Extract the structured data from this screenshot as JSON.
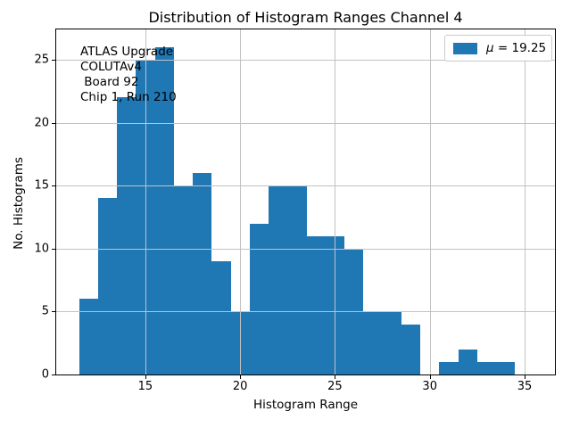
{
  "chart_data": {
    "type": "bar",
    "subtype": "histogram",
    "title": "Distribution of Histogram Ranges Channel 4",
    "xlabel": "Histogram Range",
    "ylabel": "No. Histograms",
    "bin_edges": [
      11.5,
      12.5,
      13.5,
      14.5,
      15.5,
      16.5,
      17.5,
      18.5,
      19.5,
      20.5,
      21.5,
      22.5,
      23.5,
      24.5,
      25.5,
      26.5,
      27.5,
      28.5,
      29.5,
      30.5,
      31.5,
      32.5,
      33.5,
      34.5
    ],
    "counts": [
      6,
      14,
      22,
      25,
      26,
      15,
      16,
      9,
      5,
      12,
      15,
      15,
      11,
      11,
      10,
      5,
      5,
      4,
      0,
      1,
      2,
      1,
      1
    ],
    "xlim": [
      10.3,
      36.6
    ],
    "ylim": [
      0,
      27.4
    ],
    "xticks": [
      15,
      20,
      25,
      30,
      35
    ],
    "yticks": [
      0,
      5,
      10,
      15,
      20,
      25
    ],
    "grid": true,
    "legend": {
      "label": "μ = 19.25",
      "symbol": "μ",
      "rest": " = 19.25",
      "position": "upper right"
    },
    "mean": 19.25,
    "annotation_lines": [
      "ATLAS Upgrade",
      "COLUTAv4",
      " Board 92",
      "Chip 1, Run 210"
    ],
    "colors": {
      "bar": "#1f77b4",
      "grid": "#c2c2c2",
      "spine": "#000000",
      "text": "#000000",
      "legend_border": "#cccccc"
    }
  }
}
